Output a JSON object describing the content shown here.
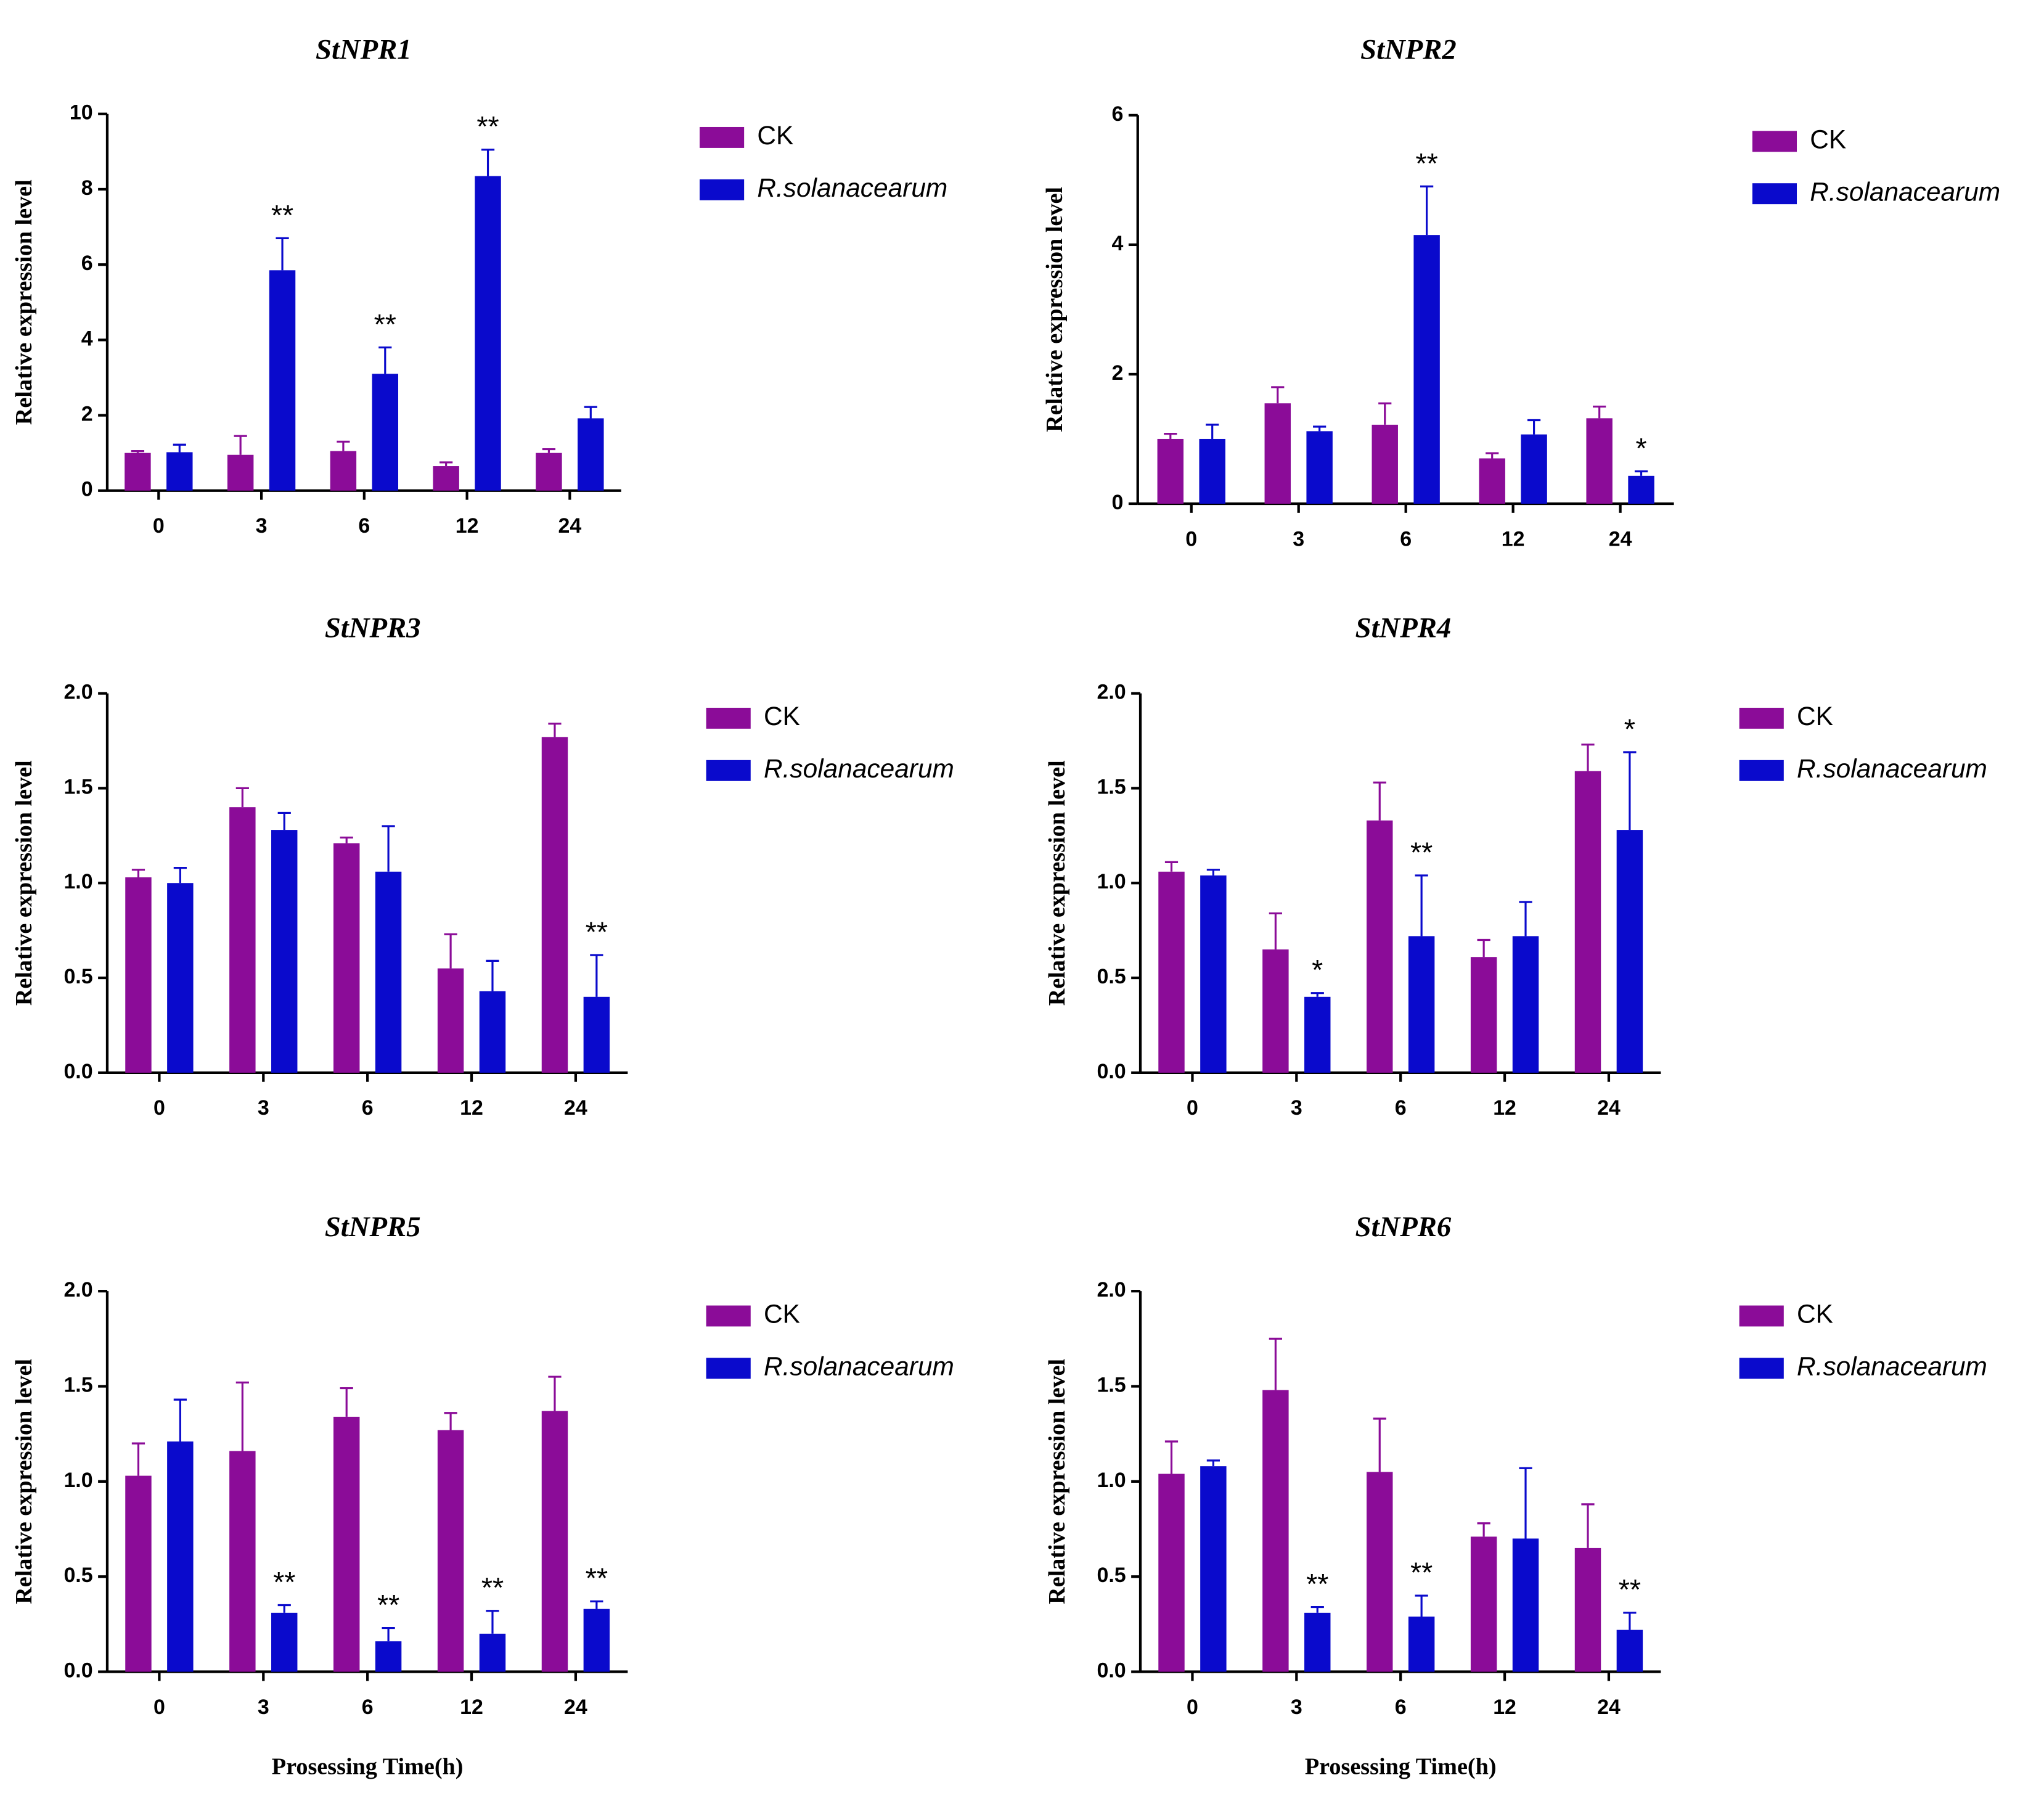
{
  "chart_data": [
    {
      "type": "bar",
      "title": "StNPR1",
      "ylabel": "Relative expression level",
      "categories": [
        "0",
        "3",
        "6",
        "12",
        "24"
      ],
      "ylim": [
        0,
        10
      ],
      "yticks": [
        0,
        2,
        4,
        6,
        8,
        10
      ],
      "series": [
        {
          "name": "CK",
          "color": "#8b0c98",
          "values": [
            1.0,
            0.95,
            1.05,
            0.65,
            1.0
          ],
          "errors": [
            0.05,
            0.5,
            0.25,
            0.1,
            0.1
          ]
        },
        {
          "name": "R.solanacearum",
          "color": "#0a0acc",
          "values": [
            1.02,
            5.85,
            3.1,
            8.35,
            1.92
          ],
          "errors": [
            0.2,
            0.85,
            0.7,
            0.7,
            0.3
          ],
          "significance": [
            null,
            "**",
            "**",
            "**",
            null
          ]
        }
      ]
    },
    {
      "type": "bar",
      "title": "StNPR2",
      "ylabel": "Relative expression level",
      "categories": [
        "0",
        "3",
        "6",
        "12",
        "24"
      ],
      "ylim": [
        0,
        6
      ],
      "yticks": [
        0,
        2,
        4,
        6
      ],
      "series": [
        {
          "name": "CK",
          "color": "#8b0c98",
          "values": [
            1.0,
            1.55,
            1.22,
            0.7,
            1.32
          ],
          "errors": [
            0.08,
            0.25,
            0.33,
            0.08,
            0.18
          ]
        },
        {
          "name": "R.solanacearum",
          "color": "#0a0acc",
          "values": [
            1.0,
            1.12,
            4.15,
            1.07,
            0.43
          ],
          "errors": [
            0.22,
            0.07,
            0.75,
            0.22,
            0.07
          ],
          "significance": [
            null,
            null,
            "**",
            null,
            "*"
          ]
        }
      ]
    },
    {
      "type": "bar",
      "title": "StNPR3",
      "ylabel": "Relative expression level",
      "categories": [
        "0",
        "3",
        "6",
        "12",
        "24"
      ],
      "ylim": [
        0,
        2
      ],
      "yticks": [
        {
          "value": 0,
          "label": "0.0"
        },
        0.5,
        {
          "value": 1,
          "label": "1.0"
        },
        1.5,
        {
          "value": 2,
          "label": "2.0"
        }
      ],
      "series": [
        {
          "name": "CK",
          "color": "#8b0c98",
          "values": [
            1.03,
            1.4,
            1.21,
            0.55,
            1.77
          ],
          "errors": [
            0.04,
            0.1,
            0.03,
            0.18,
            0.07
          ]
        },
        {
          "name": "R.solanacearum",
          "color": "#0a0acc",
          "values": [
            1.0,
            1.28,
            1.06,
            0.43,
            0.4
          ],
          "errors": [
            0.08,
            0.09,
            0.24,
            0.16,
            0.22
          ],
          "significance": [
            null,
            null,
            null,
            null,
            "**"
          ]
        }
      ]
    },
    {
      "type": "bar",
      "title": "StNPR4",
      "ylabel": "Relative expression level",
      "categories": [
        "0",
        "3",
        "6",
        "12",
        "24"
      ],
      "ylim": [
        0,
        2
      ],
      "yticks": [
        {
          "value": 0,
          "label": "0.0"
        },
        0.5,
        {
          "value": 1,
          "label": "1.0"
        },
        1.5,
        {
          "value": 2,
          "label": "2.0"
        }
      ],
      "series": [
        {
          "name": "CK",
          "color": "#8b0c98",
          "values": [
            1.06,
            0.65,
            1.33,
            0.61,
            1.59
          ],
          "errors": [
            0.05,
            0.19,
            0.2,
            0.09,
            0.14
          ]
        },
        {
          "name": "R.solanacearum",
          "color": "#0a0acc",
          "values": [
            1.04,
            0.4,
            0.72,
            0.72,
            1.28
          ],
          "errors": [
            0.03,
            0.02,
            0.32,
            0.18,
            0.41
          ],
          "significance": [
            null,
            "*",
            "**",
            null,
            "*"
          ]
        }
      ]
    },
    {
      "type": "bar",
      "title": "StNPR5",
      "ylabel": "Relative expression level",
      "xlabel": "Prosessing Time(h)",
      "categories": [
        "0",
        "3",
        "6",
        "12",
        "24"
      ],
      "ylim": [
        0,
        2
      ],
      "yticks": [
        {
          "value": 0,
          "label": "0.0"
        },
        0.5,
        {
          "value": 1,
          "label": "1.0"
        },
        1.5,
        {
          "value": 2,
          "label": "2.0"
        }
      ],
      "series": [
        {
          "name": "CK",
          "color": "#8b0c98",
          "values": [
            1.03,
            1.16,
            1.34,
            1.27,
            1.37
          ],
          "errors": [
            0.17,
            0.36,
            0.15,
            0.09,
            0.18
          ]
        },
        {
          "name": "R.solanacearum",
          "color": "#0a0acc",
          "values": [
            1.21,
            0.31,
            0.16,
            0.2,
            0.33
          ],
          "errors": [
            0.22,
            0.04,
            0.07,
            0.12,
            0.04
          ],
          "significance": [
            null,
            "**",
            "**",
            "**",
            "**"
          ]
        }
      ]
    },
    {
      "type": "bar",
      "title": "StNPR6",
      "ylabel": "Relative expression level",
      "xlabel": "Prosessing Time(h)",
      "categories": [
        "0",
        "3",
        "6",
        "12",
        "24"
      ],
      "ylim": [
        0,
        2
      ],
      "yticks": [
        {
          "value": 0,
          "label": "0.0"
        },
        0.5,
        {
          "value": 1,
          "label": "1.0"
        },
        1.5,
        {
          "value": 2,
          "label": "2.0"
        }
      ],
      "series": [
        {
          "name": "CK",
          "color": "#8b0c98",
          "values": [
            1.04,
            1.48,
            1.05,
            0.71,
            0.65
          ],
          "errors": [
            0.17,
            0.27,
            0.28,
            0.07,
            0.23
          ]
        },
        {
          "name": "R.solanacearum",
          "color": "#0a0acc",
          "values": [
            1.08,
            0.31,
            0.29,
            0.7,
            0.22
          ],
          "errors": [
            0.03,
            0.03,
            0.11,
            0.37,
            0.09
          ],
          "significance": [
            null,
            "**",
            "**",
            null,
            "**"
          ]
        }
      ]
    }
  ]
}
